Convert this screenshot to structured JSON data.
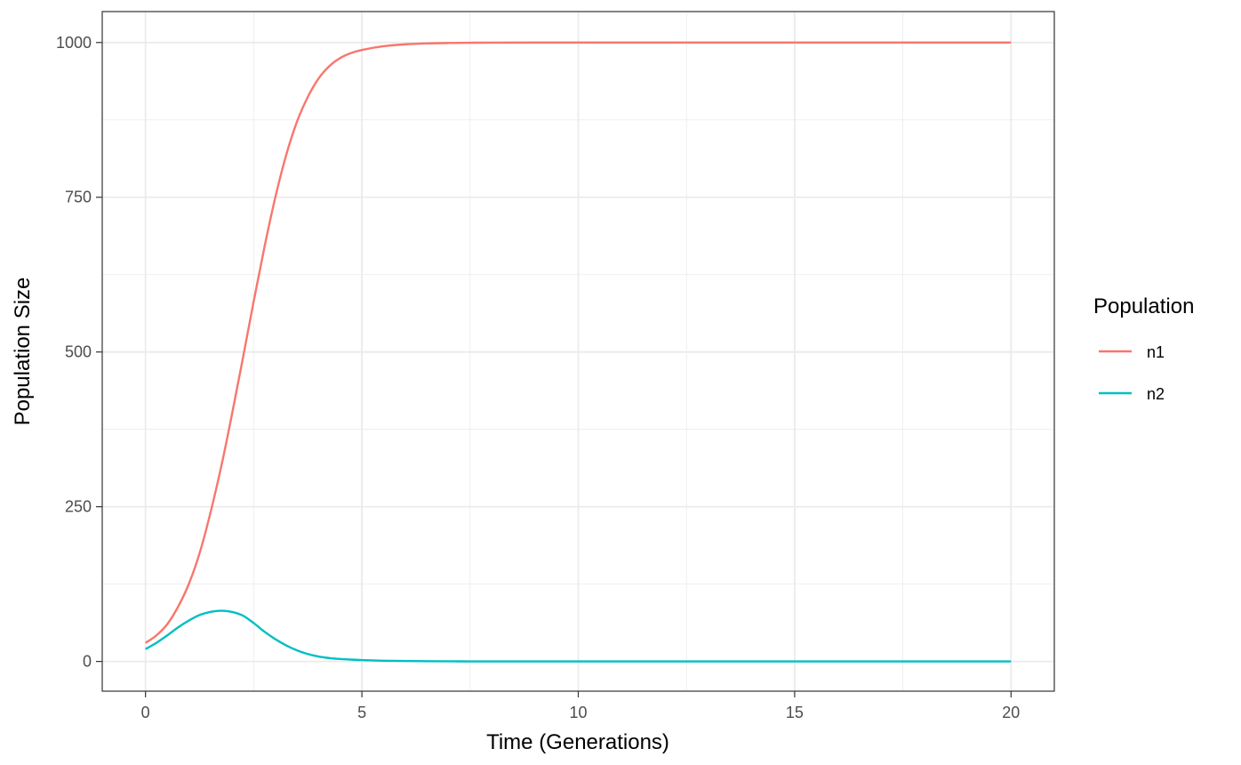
{
  "chart_data": {
    "type": "line",
    "title": "",
    "xlabel": "Time (Generations)",
    "ylabel": "Population Size",
    "xlim": [
      -1,
      21
    ],
    "ylim": [
      -48,
      1050
    ],
    "x_major_ticks": [
      0,
      5,
      10,
      15,
      20
    ],
    "x_tick_labels": [
      "0",
      "5",
      "10",
      "15",
      "20"
    ],
    "x_minor_ticks": [
      2.5,
      7.5,
      12.5,
      17.5
    ],
    "y_major_ticks": [
      0,
      250,
      500,
      750,
      1000
    ],
    "y_tick_labels": [
      "0",
      "250",
      "500",
      "750",
      "1000"
    ],
    "y_minor_ticks": [
      125,
      375,
      625,
      875
    ],
    "grid": true,
    "legend": {
      "title": "Population",
      "placement": "right"
    },
    "x": [
      0,
      0.25,
      0.5,
      0.75,
      1,
      1.25,
      1.5,
      1.75,
      2,
      2.25,
      2.5,
      2.75,
      3,
      3.25,
      3.5,
      3.75,
      4,
      4.25,
      4.5,
      4.75,
      5,
      5.5,
      6,
      6.5,
      7,
      7.5,
      8,
      9,
      10,
      12,
      14,
      16,
      18,
      20
    ],
    "series": [
      {
        "name": "n1",
        "color": "#F8766D",
        "values": [
          30,
          42,
          60,
          88,
          125,
          175,
          240,
          315,
          400,
          490,
          582,
          670,
          750,
          818,
          872,
          912,
          942,
          962,
          975,
          983,
          988,
          994,
          997,
          998.5,
          999.2,
          999.6,
          999.8,
          999.9,
          1000,
          1000,
          1000,
          1000,
          1000,
          1000
        ]
      },
      {
        "name": "n2",
        "color": "#00BFC4",
        "values": [
          20,
          30,
          42,
          55,
          66,
          75,
          80,
          82,
          80,
          74,
          62,
          48,
          36,
          26,
          18,
          12,
          8,
          5.5,
          4,
          3,
          2.2,
          1.2,
          0.7,
          0.4,
          0.2,
          0.1,
          0.05,
          0.02,
          0,
          0,
          0,
          0,
          0,
          0
        ]
      }
    ]
  }
}
